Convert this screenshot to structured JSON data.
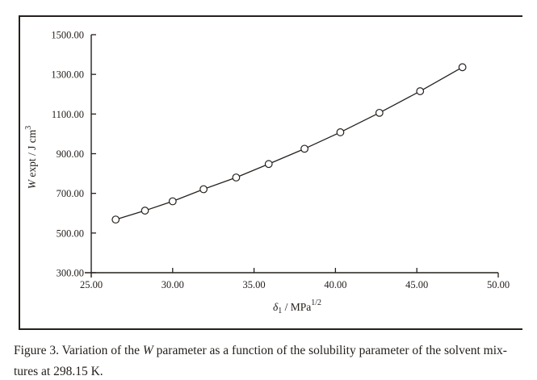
{
  "figure": {
    "caption": {
      "line1_prefix": "Figure 3. Variation of the ",
      "line1_var": "W",
      "line1_suffix": " parameter as a function of the solubility parameter of the solvent mix-",
      "line2": "tures at 298.15 K."
    }
  },
  "labels": {
    "xlabel": {
      "symbol": "δ",
      "sub": "1",
      "sep": " / ",
      "unit": "MPa",
      "sup": "1/2"
    },
    "ylabel": {
      "var": "W",
      "mid": " expt / J cm",
      "sup": "3"
    }
  },
  "colors": {
    "ink": "#25201d",
    "background": "#ffffff",
    "marker_fill": "#ffffff"
  },
  "chart_data": {
    "type": "line",
    "title": "",
    "xlabel": "δ1 / MPa^1/2",
    "ylabel": "W expt / J cm^3",
    "xlim": [
      25,
      50
    ],
    "ylim": [
      300,
      1500
    ],
    "grid": false,
    "legend": "none",
    "x_ticks": [
      {
        "value": 25,
        "label": "25.00"
      },
      {
        "value": 30,
        "label": "30.00"
      },
      {
        "value": 35,
        "label": "35.00"
      },
      {
        "value": 40,
        "label": "40.00"
      },
      {
        "value": 45,
        "label": "45.00"
      },
      {
        "value": 50,
        "label": "50.00"
      }
    ],
    "y_ticks": [
      {
        "value": 300,
        "label": "300.00"
      },
      {
        "value": 500,
        "label": "500.00"
      },
      {
        "value": 700,
        "label": "700.00"
      },
      {
        "value": 900,
        "label": "900.00"
      },
      {
        "value": 1100,
        "label": "1100.00"
      },
      {
        "value": 1300,
        "label": "1300.00"
      },
      {
        "value": 1500,
        "label": "1500.00"
      }
    ],
    "series": [
      {
        "name": "W expt",
        "marker": "open-circle",
        "line_color": "#25201d",
        "x": [
          26.5,
          28.3,
          30.0,
          31.9,
          33.9,
          35.9,
          38.1,
          40.3,
          42.7,
          45.2,
          47.8
        ],
        "y": [
          568,
          613,
          660,
          721,
          780,
          848,
          925,
          1008,
          1106,
          1215,
          1336
        ]
      }
    ]
  }
}
